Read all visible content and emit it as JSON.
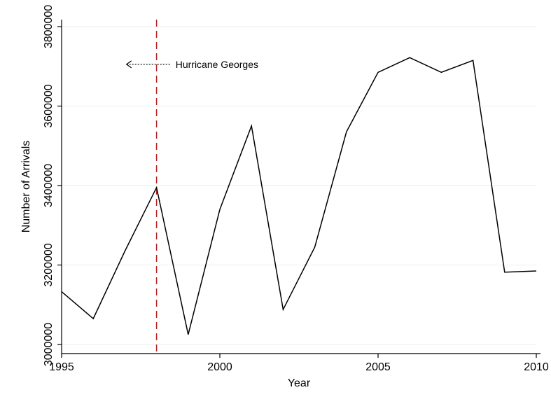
{
  "chart_data": {
    "type": "line",
    "title": "",
    "xlabel": "Year",
    "ylabel": "Number of Arrivals",
    "x": [
      1995,
      1996,
      1997,
      1998,
      1999,
      2000,
      2001,
      2002,
      2003,
      2004,
      2005,
      2006,
      2007,
      2008,
      2009,
      2010
    ],
    "series": [
      {
        "values": [
          3133000,
          3065000,
          3235000,
          3395000,
          3025000,
          3340000,
          3550000,
          3088000,
          3245000,
          3535000,
          3685000,
          3722000,
          3685000,
          3715000,
          3182000,
          3185000
        ],
        "color": "#000000"
      }
    ],
    "xlim": [
      1995,
      2010
    ],
    "ylim": [
      3000000,
      3820000
    ],
    "xticks": [
      1995,
      2000,
      2005,
      2010
    ],
    "xtick_labels": [
      "1995",
      "2000",
      "2005",
      "2010"
    ],
    "yticks": [
      3000000,
      3200000,
      3400000,
      3600000,
      3800000
    ],
    "ytick_labels": [
      "3000000",
      "3200000",
      "3400000",
      "3600000",
      "3800000"
    ],
    "grid": true,
    "grid_color": "#e8eef3",
    "vline": {
      "x": 1998,
      "color": "#b22222",
      "style": "dashed"
    },
    "annotations": [
      {
        "text": "Hurricane Georges",
        "x": 1998.6,
        "y": 3705000,
        "arrow": "left"
      }
    ]
  }
}
